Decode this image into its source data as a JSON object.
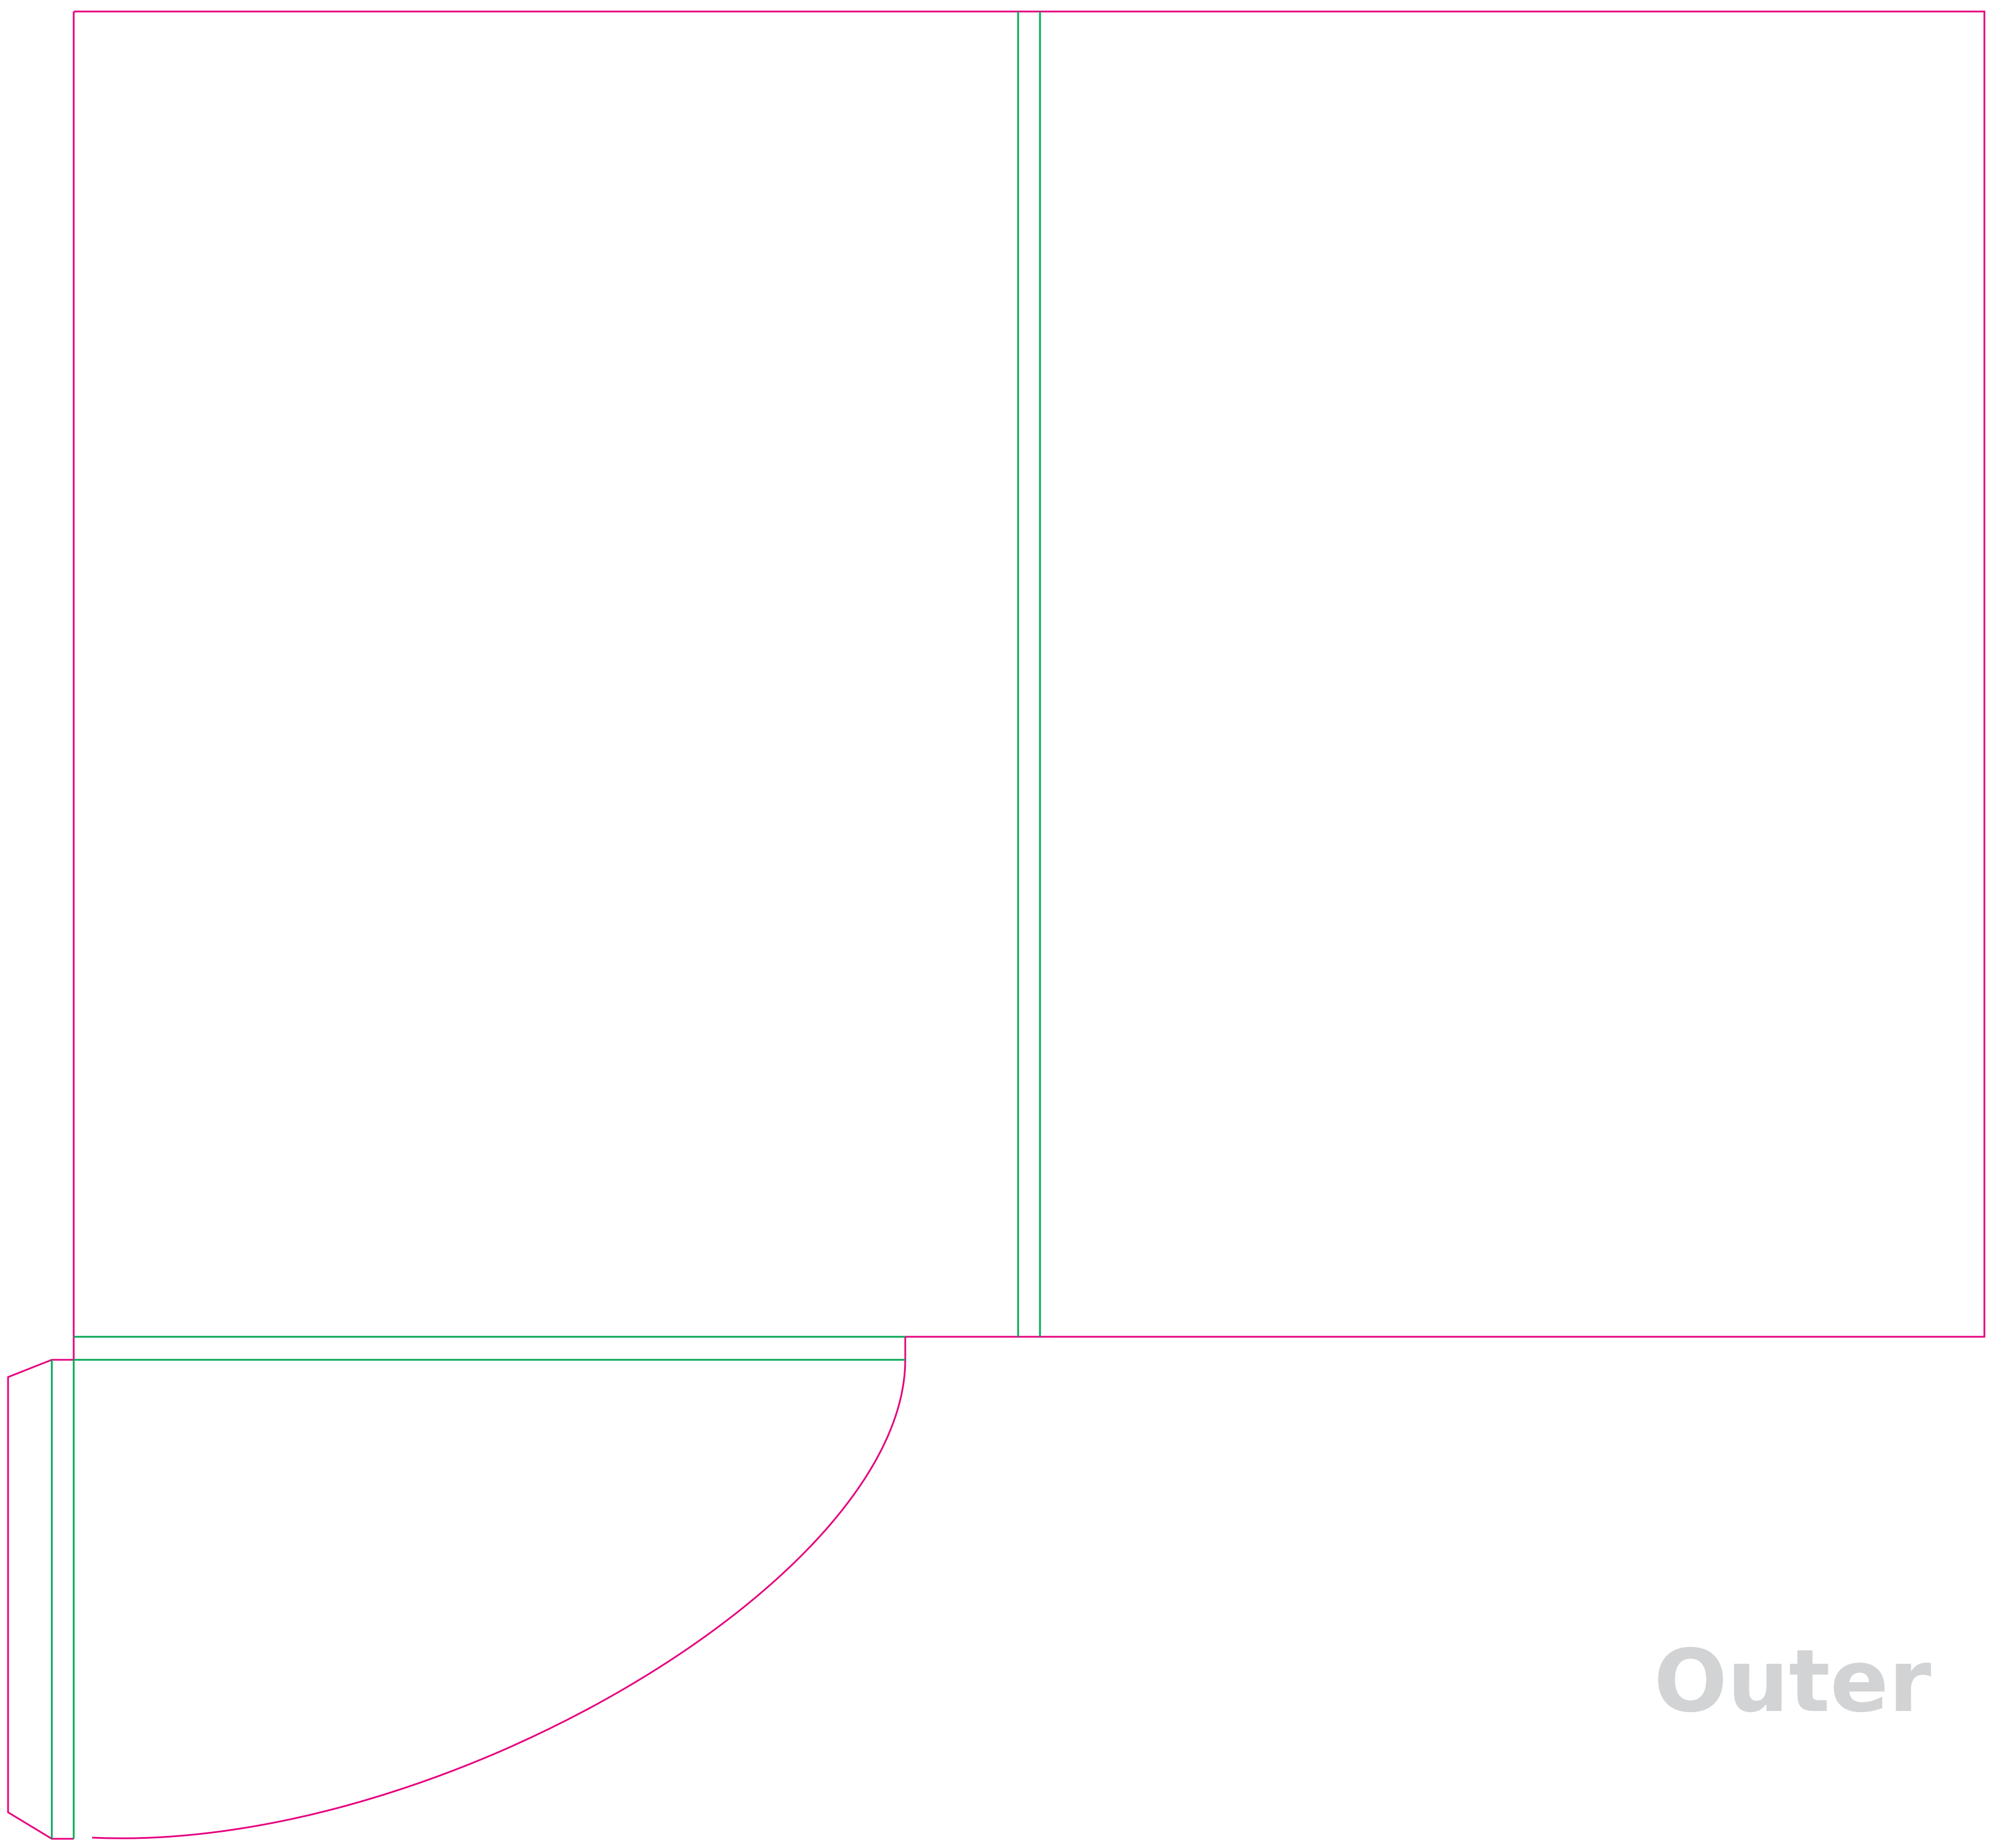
{
  "diagram": {
    "side_label": "Outer",
    "colors": {
      "background": "#ffffff",
      "cut_line": "#e6007e",
      "fold_line": "#00a651",
      "label": "#d1d3d4"
    }
  }
}
